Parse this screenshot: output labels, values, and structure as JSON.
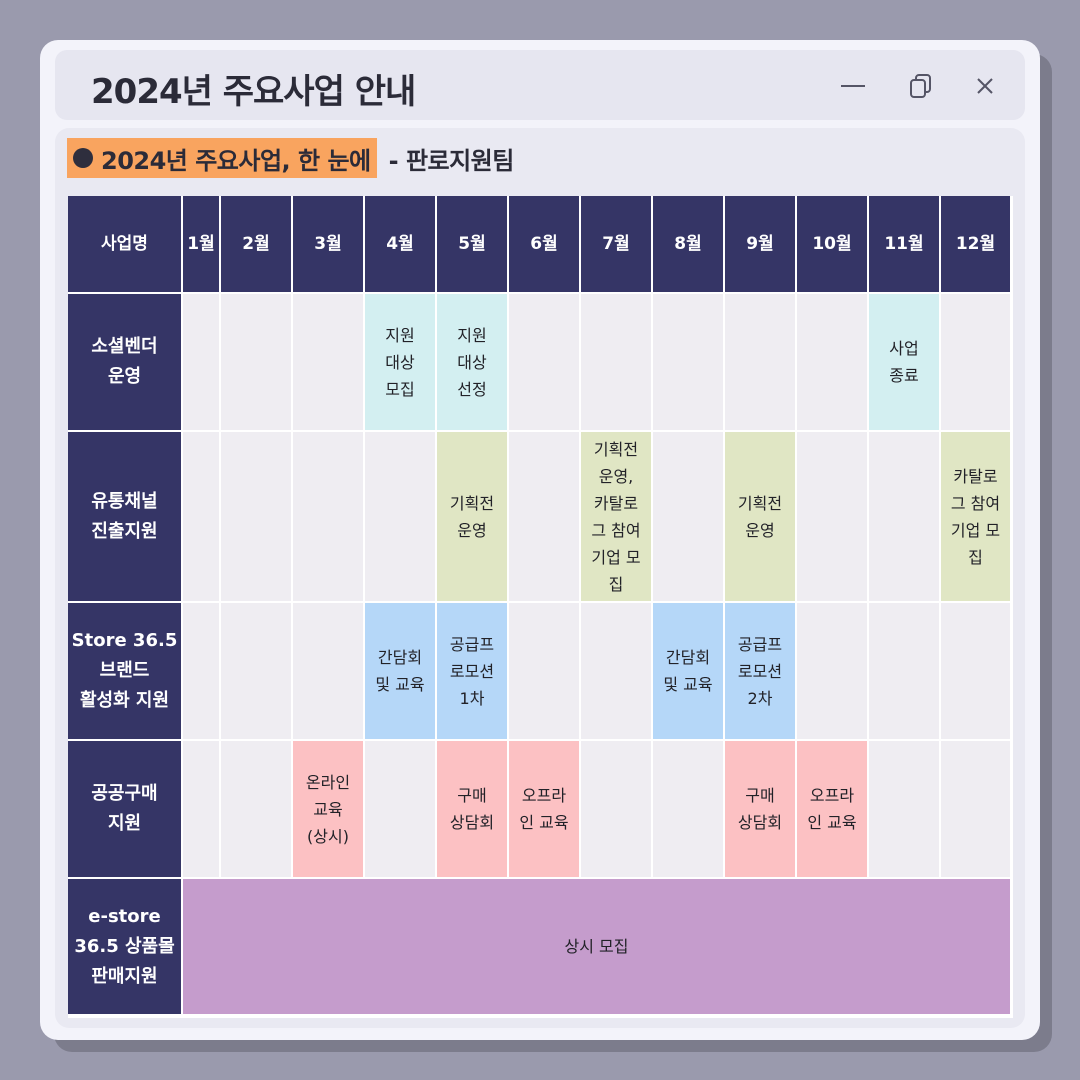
{
  "window": {
    "title": "2024년 주요사업 안내"
  },
  "heading": {
    "highlight": "2024년 주요사업, 한 눈에",
    "team": "- 판로지원팀"
  },
  "table": {
    "corner_header": "사업명",
    "months": [
      "1월",
      "2월",
      "3월",
      "4월",
      "5월",
      "6월",
      "7월",
      "8월",
      "9월",
      "10월",
      "11월",
      "12월"
    ],
    "rows": [
      {
        "name": "소셜벤더\n운영",
        "cells": [
          {
            "month": 4,
            "text": "지원\n대상\n모집",
            "color": "cyan"
          },
          {
            "month": 5,
            "text": "지원\n대상\n선정",
            "color": "cyan"
          },
          {
            "month": 11,
            "text": "사업\n종료",
            "color": "cyan"
          }
        ]
      },
      {
        "name": "유통채널\n진출지원",
        "cells": [
          {
            "month": 5,
            "text": "기획전\n운영",
            "color": "green"
          },
          {
            "month": 7,
            "text": "기획전\n운영,\n카탈로\n그 참여\n기업 모\n집",
            "color": "green"
          },
          {
            "month": 9,
            "text": "기획전\n운영",
            "color": "green"
          },
          {
            "month": 12,
            "text": "카탈로\n그 참여\n기업 모\n집",
            "color": "green"
          }
        ]
      },
      {
        "name": "Store 36.5\n브랜드\n활성화 지원",
        "cells": [
          {
            "month": 4,
            "text": "간담회\n및 교육",
            "color": "blue"
          },
          {
            "month": 5,
            "text": "공급프\n로모션\n1차",
            "color": "blue"
          },
          {
            "month": 8,
            "text": "간담회\n및 교육",
            "color": "blue"
          },
          {
            "month": 9,
            "text": "공급프\n로모션\n2차",
            "color": "blue"
          }
        ]
      },
      {
        "name": "공공구매\n지원",
        "cells": [
          {
            "month": 3,
            "text": "온라인\n교육\n(상시)",
            "color": "pink"
          },
          {
            "month": 5,
            "text": "구매\n상담회",
            "color": "pink"
          },
          {
            "month": 6,
            "text": "오프라\n인 교육",
            "color": "pink"
          },
          {
            "month": 9,
            "text": "구매\n상담회",
            "color": "pink"
          },
          {
            "month": 10,
            "text": "오프라\n인 교육",
            "color": "pink"
          }
        ]
      },
      {
        "name": "e-store\n36.5 상품몰\n판매지원",
        "span_text": "상시 모집",
        "span_color": "purple"
      }
    ]
  },
  "colors": {
    "header_bg": "#353566",
    "highlight": "#f9a45f",
    "cyan": "#d3eff1",
    "green": "#e0e6c4",
    "blue": "#b5d7f8",
    "pink": "#fcc1c3",
    "purple": "#c59ccc"
  },
  "icons": [
    "minimize-icon",
    "copy-icon",
    "close-icon"
  ]
}
